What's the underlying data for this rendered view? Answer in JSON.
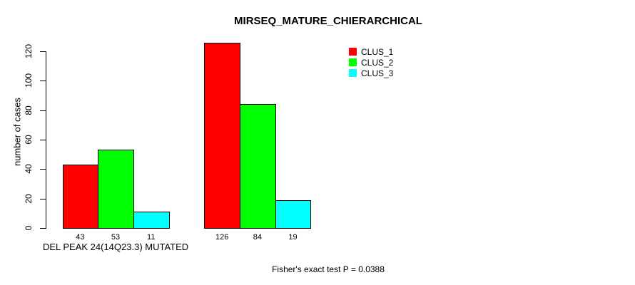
{
  "chart_data": {
    "type": "bar",
    "title": "MIRSEQ_MATURE_CHIERARCHICAL",
    "ylabel": "number of cases",
    "xlabel": "",
    "ylim": [
      0,
      120
    ],
    "yticks": [
      0,
      20,
      40,
      60,
      80,
      100,
      120
    ],
    "grid": false,
    "legend_position": "top-right",
    "series": [
      {
        "name": "CLUS_1",
        "color": "#FF0000"
      },
      {
        "name": "CLUS_2",
        "color": "#00FF00"
      },
      {
        "name": "CLUS_3",
        "color": "#00FFFF"
      }
    ],
    "groups": [
      {
        "label": "DEL PEAK 24(14Q23.3) MUTATED",
        "values": [
          43,
          53,
          11
        ]
      },
      {
        "label": "",
        "values": [
          126,
          84,
          19
        ]
      }
    ],
    "annotation": "Fisher's exact test P = 0.0388"
  }
}
